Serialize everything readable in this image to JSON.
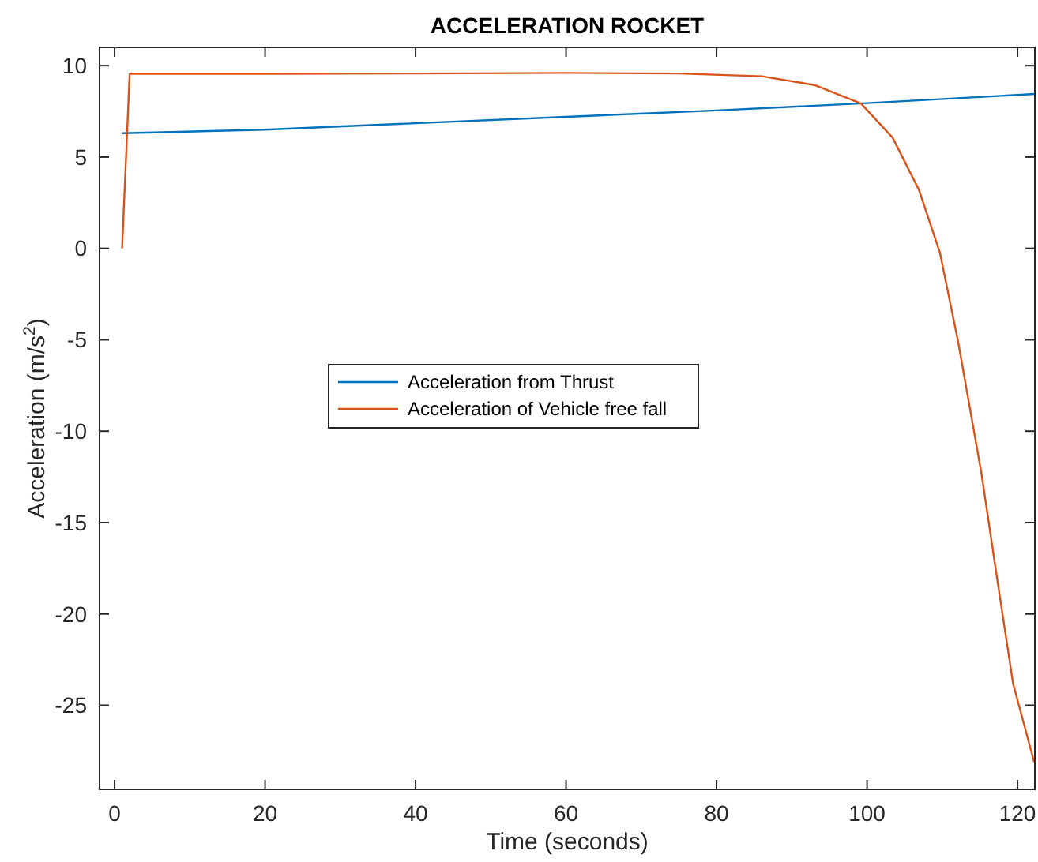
{
  "chart_data": {
    "type": "line",
    "title": "ACCELERATION  ROCKET",
    "xlabel": "Time (seconds)",
    "ylabel": "Acceleration (m/s$^{2}$)",
    "xlim": [
      -2,
      122.3
    ],
    "ylim": [
      -29.6,
      11
    ],
    "xticks": [
      0,
      20,
      40,
      60,
      80,
      100,
      120
    ],
    "yticks": [
      -25,
      -20,
      -15,
      -10,
      -5,
      0,
      5,
      10
    ],
    "legend": "left",
    "grid": false,
    "series": [
      {
        "name": "Acceleration from Thrust",
        "color": "#0072bd",
        "x": [
          1,
          20,
          40,
          60,
          80,
          100,
          122.3
        ],
        "values": [
          6.3,
          6.5,
          6.85,
          7.2,
          7.55,
          7.95,
          8.45
        ]
      },
      {
        "name": "Acceleration of Vehicle free fall",
        "color": "#d95319",
        "x": [
          1,
          2,
          20,
          40,
          60,
          75,
          86,
          93,
          99.2,
          103.4,
          106.9,
          109.7,
          112.1,
          115.2,
          117.3,
          119.4,
          122.2
        ],
        "values": [
          0,
          9.55,
          9.55,
          9.57,
          9.6,
          9.57,
          9.42,
          8.94,
          7.93,
          6.06,
          3.2,
          -0.26,
          -5.1,
          -12.3,
          -18.1,
          -23.8,
          -28.1
        ]
      }
    ]
  }
}
